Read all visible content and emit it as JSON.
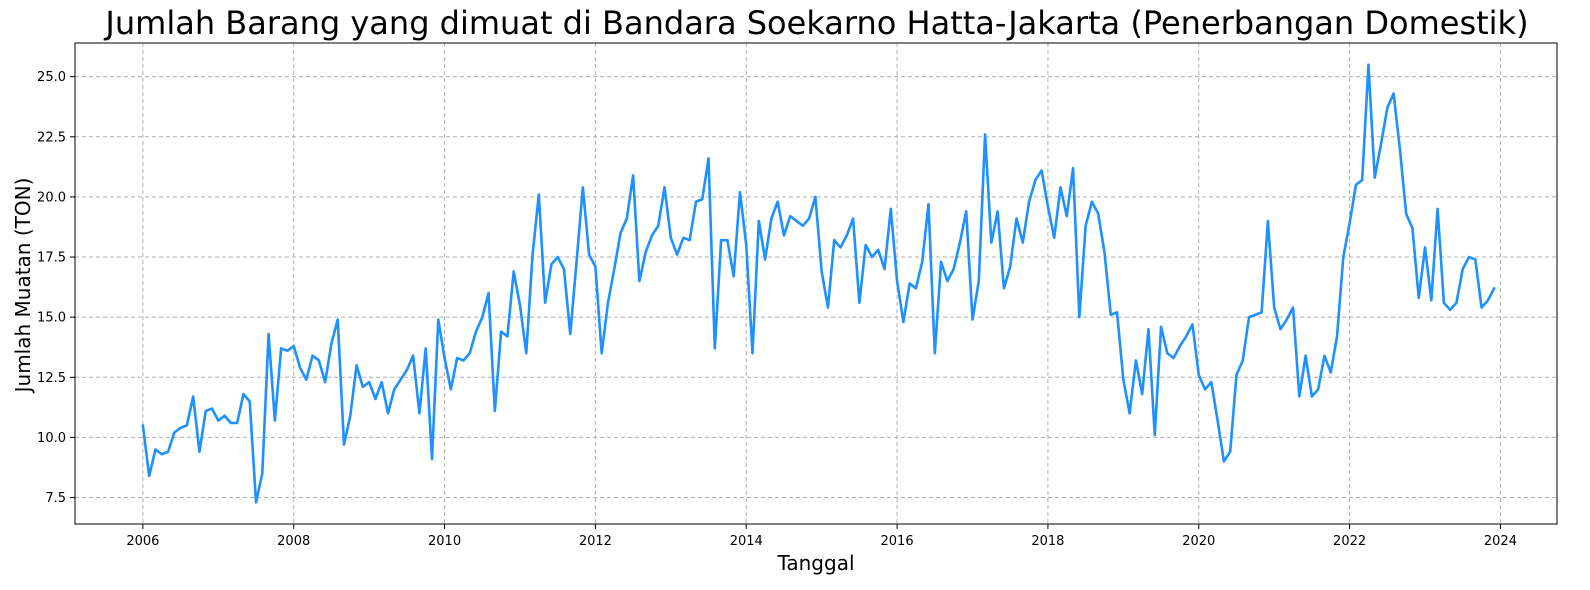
{
  "chart_data": {
    "type": "line",
    "title": "Jumlah Barang yang dimuat di Bandara Soekarno Hatta-Jakarta (Penerbangan Domestik)",
    "xlabel": "Tanggal",
    "ylabel": "Jumlah Muatan (TON)",
    "xlim": [
      2005.1,
      2024.75
    ],
    "ylim": [
      6.4,
      26.4
    ],
    "x_ticks": [
      2006,
      2008,
      2010,
      2012,
      2014,
      2016,
      2018,
      2020,
      2022,
      2024
    ],
    "x_tick_labels": [
      "2006",
      "2008",
      "2010",
      "2012",
      "2014",
      "2016",
      "2018",
      "2020",
      "2022",
      "2024"
    ],
    "y_ticks": [
      7.5,
      10.0,
      12.5,
      15.0,
      17.5,
      20.0,
      22.5,
      25.0
    ],
    "y_tick_labels": [
      "7.5",
      "10.0",
      "12.5",
      "15.0",
      "17.5",
      "20.0",
      "22.5",
      "25.0"
    ],
    "grid": true,
    "color": "#1e90ff",
    "series": [
      {
        "start_year": 2006,
        "frequency": "monthly",
        "values": [
          10.5,
          8.4,
          9.5,
          9.3,
          9.4,
          10.2,
          10.4,
          10.5,
          11.7,
          9.4,
          11.1,
          11.2,
          10.7,
          10.9,
          10.6,
          10.6,
          11.8,
          11.5,
          7.3,
          8.5,
          14.3,
          10.7,
          13.7,
          13.6,
          13.8,
          12.9,
          12.4,
          13.4,
          13.2,
          12.3,
          13.9,
          14.9,
          9.7,
          10.9,
          13.0,
          12.1,
          12.3,
          11.6,
          12.3,
          11.0,
          12.0,
          12.4,
          12.8,
          13.4,
          11.0,
          13.7,
          9.1,
          14.9,
          13.3,
          12.0,
          13.3,
          13.2,
          13.5,
          14.4,
          15.0,
          16.0,
          11.1,
          14.4,
          14.2,
          16.9,
          15.5,
          13.5,
          17.6,
          20.1,
          15.6,
          17.2,
          17.5,
          17.0,
          14.3,
          17.3,
          20.4,
          17.6,
          17.1,
          13.5,
          15.6,
          17.0,
          18.5,
          19.1,
          20.9,
          16.5,
          17.7,
          18.4,
          18.8,
          20.4,
          18.3,
          17.6,
          18.3,
          18.2,
          19.8,
          19.9,
          21.6,
          13.7,
          18.2,
          18.2,
          16.7,
          20.2,
          18.0,
          13.5,
          19.0,
          17.4,
          19.1,
          19.8,
          18.4,
          19.2,
          19.0,
          18.8,
          19.1,
          20.0,
          16.9,
          15.4,
          18.2,
          17.9,
          18.4,
          19.1,
          15.6,
          18.0,
          17.5,
          17.8,
          17.0,
          19.5,
          16.5,
          14.8,
          16.4,
          16.2,
          17.3,
          19.7,
          13.5,
          17.3,
          16.5,
          17.0,
          18.1,
          19.4,
          14.9,
          16.5,
          22.6,
          18.1,
          19.4,
          16.2,
          17.1,
          19.1,
          18.1,
          19.8,
          20.7,
          21.1,
          19.6,
          18.3,
          20.4,
          19.2,
          21.2,
          15.0,
          18.8,
          19.8,
          19.3,
          17.7,
          15.1,
          15.2,
          12.4,
          11.0,
          13.2,
          11.8,
          14.5,
          10.1,
          14.6,
          13.5,
          13.3,
          13.8,
          14.2,
          14.7,
          12.6,
          12.0,
          12.3,
          10.7,
          9.0,
          9.4,
          12.6,
          13.2,
          15.0,
          15.1,
          15.2,
          19.0,
          15.4,
          14.5,
          14.9,
          15.4,
          11.7,
          13.4,
          11.7,
          12.0,
          13.4,
          12.7,
          14.2,
          17.5,
          18.9,
          20.5,
          20.7,
          25.5,
          20.8,
          22.2,
          23.7,
          24.3,
          22.0,
          19.3,
          18.7,
          15.8,
          17.9,
          15.7,
          19.5,
          15.6,
          15.3,
          15.6,
          17.0,
          17.5,
          17.4,
          15.4,
          15.7,
          16.2
        ]
      }
    ]
  }
}
